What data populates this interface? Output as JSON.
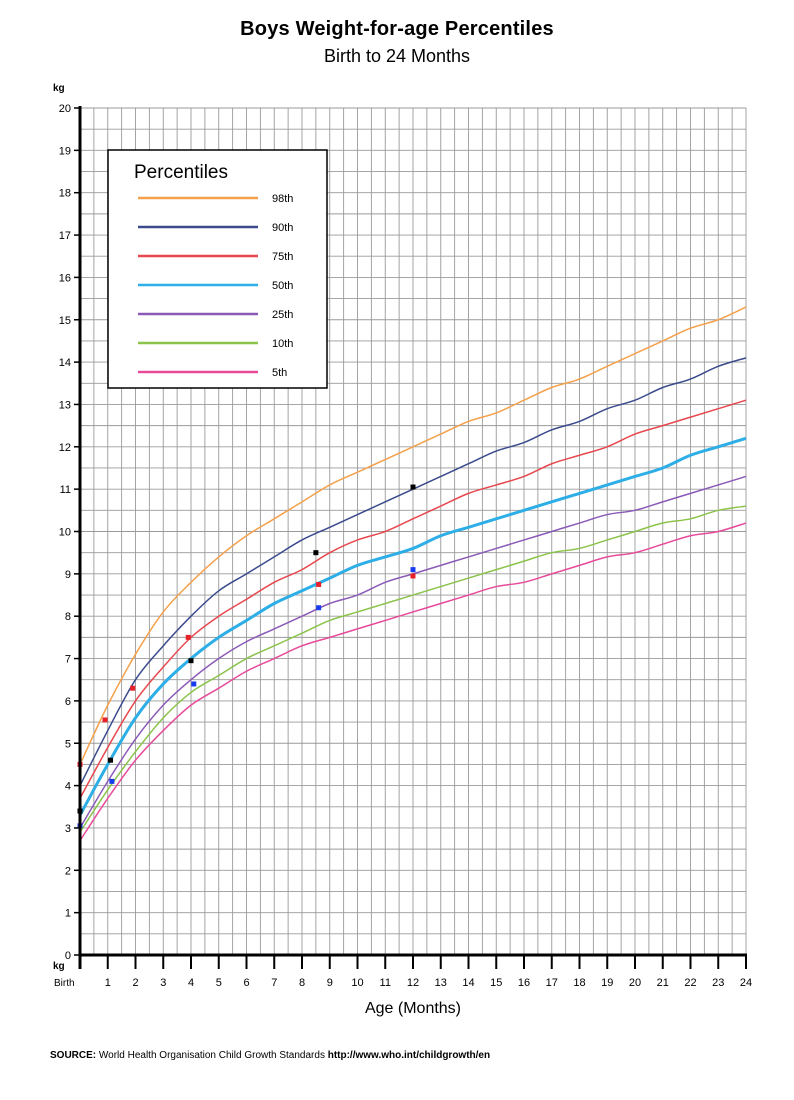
{
  "chart_data": {
    "type": "line",
    "title": "Boys Weight-for-age Percentiles",
    "subtitle": "Birth to 24 Months",
    "xlabel": "Age (Months)",
    "ylabel": "kg",
    "y_unit_bottom": "kg",
    "xlim": [
      0,
      24
    ],
    "ylim": [
      0,
      20
    ],
    "grid": true,
    "x_tick_labels": [
      "Birth",
      "1",
      "2",
      "3",
      "4",
      "5",
      "6",
      "7",
      "8",
      "9",
      "10",
      "11",
      "12",
      "13",
      "14",
      "15",
      "16",
      "17",
      "18",
      "19",
      "20",
      "21",
      "22",
      "23",
      "24"
    ],
    "y_tick_labels": [
      "0",
      "1",
      "2",
      "3",
      "4",
      "5",
      "6",
      "7",
      "8",
      "9",
      "10",
      "11",
      "12",
      "13",
      "14",
      "15",
      "16",
      "17",
      "18",
      "19",
      "20"
    ],
    "legend": {
      "title": "Percentiles",
      "placement": "top-left"
    },
    "x": [
      0,
      1,
      2,
      3,
      4,
      5,
      6,
      7,
      8,
      9,
      10,
      11,
      12,
      13,
      14,
      15,
      16,
      17,
      18,
      19,
      20,
      21,
      22,
      23,
      24
    ],
    "series": [
      {
        "name": "98th",
        "color": "#f5a04a",
        "width": 1.5,
        "values": [
          4.5,
          5.9,
          7.1,
          8.1,
          8.8,
          9.4,
          9.9,
          10.3,
          10.7,
          11.1,
          11.4,
          11.7,
          12.0,
          12.3,
          12.6,
          12.8,
          13.1,
          13.4,
          13.6,
          13.9,
          14.2,
          14.5,
          14.8,
          15.0,
          15.3
        ]
      },
      {
        "name": "90th",
        "color": "#3a4a8c",
        "width": 1.5,
        "values": [
          4.0,
          5.3,
          6.5,
          7.3,
          8.0,
          8.6,
          9.0,
          9.4,
          9.8,
          10.1,
          10.4,
          10.7,
          11.0,
          11.3,
          11.6,
          11.9,
          12.1,
          12.4,
          12.6,
          12.9,
          13.1,
          13.4,
          13.6,
          13.9,
          14.1
        ]
      },
      {
        "name": "75th",
        "color": "#e8474e",
        "width": 1.5,
        "values": [
          3.7,
          4.9,
          6.0,
          6.8,
          7.5,
          8.0,
          8.4,
          8.8,
          9.1,
          9.5,
          9.8,
          10.0,
          10.3,
          10.6,
          10.9,
          11.1,
          11.3,
          11.6,
          11.8,
          12.0,
          12.3,
          12.5,
          12.7,
          12.9,
          13.1
        ]
      },
      {
        "name": "50th",
        "color": "#2eaee6",
        "width": 3,
        "values": [
          3.3,
          4.5,
          5.6,
          6.4,
          7.0,
          7.5,
          7.9,
          8.3,
          8.6,
          8.9,
          9.2,
          9.4,
          9.6,
          9.9,
          10.1,
          10.3,
          10.5,
          10.7,
          10.9,
          11.1,
          11.3,
          11.5,
          11.8,
          12.0,
          12.2
        ]
      },
      {
        "name": "25th",
        "color": "#8b5ab8",
        "width": 1.5,
        "values": [
          3.0,
          4.1,
          5.1,
          5.9,
          6.5,
          7.0,
          7.4,
          7.7,
          8.0,
          8.3,
          8.5,
          8.8,
          9.0,
          9.2,
          9.4,
          9.6,
          9.8,
          10.0,
          10.2,
          10.4,
          10.5,
          10.7,
          10.9,
          11.1,
          11.3
        ]
      },
      {
        "name": "10th",
        "color": "#8bc34a",
        "width": 1.5,
        "values": [
          2.9,
          3.9,
          4.8,
          5.6,
          6.2,
          6.6,
          7.0,
          7.3,
          7.6,
          7.9,
          8.1,
          8.3,
          8.5,
          8.7,
          8.9,
          9.1,
          9.3,
          9.5,
          9.6,
          9.8,
          10.0,
          10.2,
          10.3,
          10.5,
          10.6
        ]
      },
      {
        "name": "5th",
        "color": "#e84a9a",
        "width": 1.5,
        "values": [
          2.7,
          3.7,
          4.6,
          5.3,
          5.9,
          6.3,
          6.7,
          7.0,
          7.3,
          7.5,
          7.7,
          7.9,
          8.1,
          8.3,
          8.5,
          8.7,
          8.8,
          9.0,
          9.2,
          9.4,
          9.5,
          9.7,
          9.9,
          10.0,
          10.2
        ]
      }
    ],
    "points": [
      {
        "x": 0.0,
        "y": 4.5,
        "color": "#e8202a"
      },
      {
        "x": 0.0,
        "y": 3.4,
        "color": "#000000"
      },
      {
        "x": 0.0,
        "y": 3.05,
        "color": "#1a3cf0"
      },
      {
        "x": 0.9,
        "y": 5.55,
        "color": "#e8202a"
      },
      {
        "x": 1.1,
        "y": 4.6,
        "color": "#000000"
      },
      {
        "x": 1.15,
        "y": 4.1,
        "color": "#1a3cf0"
      },
      {
        "x": 1.9,
        "y": 6.3,
        "color": "#e8202a"
      },
      {
        "x": 3.9,
        "y": 7.5,
        "color": "#e8202a"
      },
      {
        "x": 4.0,
        "y": 6.95,
        "color": "#000000"
      },
      {
        "x": 4.1,
        "y": 6.4,
        "color": "#1a3cf0"
      },
      {
        "x": 8.5,
        "y": 9.5,
        "color": "#000000"
      },
      {
        "x": 8.6,
        "y": 8.75,
        "color": "#e8202a"
      },
      {
        "x": 8.6,
        "y": 8.2,
        "color": "#1a3cf0"
      },
      {
        "x": 12.0,
        "y": 11.05,
        "color": "#000000"
      },
      {
        "x": 12.0,
        "y": 9.1,
        "color": "#1a3cf0"
      },
      {
        "x": 12.0,
        "y": 8.95,
        "color": "#e8202a"
      }
    ]
  },
  "source": {
    "label": "SOURCE:",
    "text": " World Health Organisation Child Growth Standards ",
    "url": "http://www.who.int/childgrowth/en"
  }
}
